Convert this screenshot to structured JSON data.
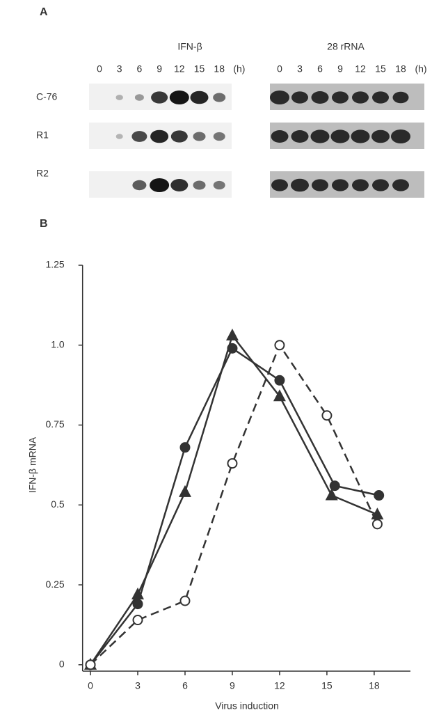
{
  "panel_a": {
    "label": "A",
    "blots": [
      {
        "title": "IFN-β",
        "lanes": [
          "0",
          "3",
          "6",
          "9",
          "12",
          "15",
          "18"
        ],
        "unit": "(h)"
      },
      {
        "title": "28 rRNA",
        "lanes": [
          "0",
          "3",
          "6",
          "9",
          "12",
          "15",
          "18"
        ],
        "unit": "(h)"
      }
    ],
    "rows": [
      "C-76",
      "R1",
      "R2"
    ]
  },
  "panel_b_label": "B",
  "chart_data": {
    "type": "line",
    "xlabel": "Virus induction",
    "ylabel": "IFN-β mRNA",
    "xlim": [
      -0.5,
      20.3
    ],
    "ylim": [
      -0.02,
      1.25
    ],
    "xticks": [
      0,
      3,
      6,
      9,
      12,
      15,
      18
    ],
    "yticks": [
      0,
      0.25,
      0.5,
      0.75,
      {
        "value": 1,
        "label": "1.0"
      },
      1.25
    ],
    "series": [
      {
        "color": "#333333",
        "marker": "circle-filled",
        "dashed": false,
        "x": [
          0,
          3,
          6,
          9,
          12,
          15.5,
          18.3
        ],
        "values": [
          0,
          0.19,
          0.68,
          0.99,
          0.89,
          0.56,
          0.53
        ]
      },
      {
        "color": "#333333",
        "marker": "triangle",
        "dashed": false,
        "x": [
          0,
          3,
          6,
          9,
          12,
          15.3,
          18.2
        ],
        "values": [
          0,
          0.22,
          0.54,
          1.03,
          0.84,
          0.53,
          0.47
        ]
      },
      {
        "color": "#333333",
        "marker": "circle-open",
        "dashed": true,
        "x": [
          0,
          3,
          6,
          9,
          12,
          15,
          18.2
        ],
        "values": [
          0,
          0.14,
          0.2,
          0.63,
          1.0,
          0.78,
          0.44
        ]
      }
    ]
  }
}
